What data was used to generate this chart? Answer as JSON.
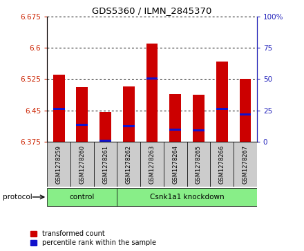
{
  "title": "GDS5360 / ILMN_2845370",
  "samples": [
    "GSM1278259",
    "GSM1278260",
    "GSM1278261",
    "GSM1278262",
    "GSM1278263",
    "GSM1278264",
    "GSM1278265",
    "GSM1278266",
    "GSM1278267"
  ],
  "red_values": [
    6.535,
    6.505,
    6.447,
    6.507,
    6.61,
    6.49,
    6.487,
    6.567,
    6.525
  ],
  "blue_values": [
    6.453,
    6.415,
    6.378,
    6.413,
    6.527,
    6.404,
    6.403,
    6.453,
    6.44
  ],
  "y_min": 6.375,
  "y_max": 6.675,
  "y_ticks": [
    6.375,
    6.45,
    6.525,
    6.6,
    6.675
  ],
  "y2_ticks": [
    0,
    25,
    50,
    75,
    100
  ],
  "y2_labels": [
    "0",
    "25",
    "50",
    "75",
    "100%"
  ],
  "bar_width": 0.5,
  "control_count": 3,
  "group_labels": [
    "control",
    "Csnk1a1 knockdown"
  ],
  "bar_color": "#cc0000",
  "blue_color": "#1111cc",
  "green_fill": "#88ee88",
  "gray_fill": "#cccccc",
  "left_label_color": "#cc2200",
  "right_label_color": "#2222bb",
  "protocol_label": "protocol",
  "legend_red": "transformed count",
  "legend_blue": "percentile rank within the sample"
}
